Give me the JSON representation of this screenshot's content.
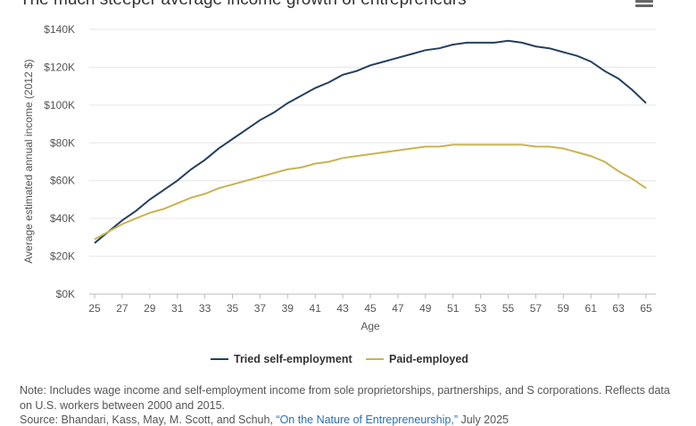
{
  "title": "The much steeper average income growth of entrepreneurs",
  "menu_icon": "hamburger-menu-icon",
  "note": "Note: Includes wage income and self-employment income from sole proprietorships, partnerships, and S corporations. Reflects data on U.S. workers between 2000 and 2015.",
  "source_prefix": "Source: Bhandari, Kass, May, M. Scott, and Schuh, ",
  "source_link": "“On the Nature of Entrepreneurship,”",
  "source_suffix": " July 2025",
  "chart_data": {
    "type": "line",
    "xlabel": "Age",
    "ylabel": "Average estimated annual income (2012 $)",
    "xlim": [
      25,
      65
    ],
    "ylim": [
      0,
      140000
    ],
    "x_ticks": [
      "25",
      "27",
      "29",
      "31",
      "33",
      "35",
      "37",
      "39",
      "41",
      "43",
      "45",
      "47",
      "49",
      "51",
      "53",
      "55",
      "57",
      "59",
      "61",
      "63",
      "65"
    ],
    "y_ticks": [
      "$0K",
      "$20K",
      "$40K",
      "$60K",
      "$80K",
      "$100K",
      "$120K",
      "$140K"
    ],
    "grid": "horizontal",
    "legend": "bottom",
    "x": [
      25,
      26,
      27,
      28,
      29,
      30,
      31,
      32,
      33,
      34,
      35,
      36,
      37,
      38,
      39,
      40,
      41,
      42,
      43,
      44,
      45,
      46,
      47,
      48,
      49,
      50,
      51,
      52,
      53,
      54,
      55,
      56,
      57,
      58,
      59,
      60,
      61,
      62,
      63,
      64,
      65
    ],
    "series": [
      {
        "name": "Tried self-employment",
        "color": "#243f5e",
        "values": [
          27000,
          33000,
          39000,
          44000,
          50000,
          55000,
          60000,
          66000,
          71000,
          77000,
          82000,
          87000,
          92000,
          96000,
          101000,
          105000,
          109000,
          112000,
          116000,
          118000,
          121000,
          123000,
          125000,
          127000,
          129000,
          130000,
          132000,
          133000,
          133000,
          133000,
          134000,
          133000,
          131000,
          130000,
          128000,
          126000,
          123000,
          118000,
          114000,
          108000,
          101000
        ]
      },
      {
        "name": "Paid-employed",
        "color": "#c9b350",
        "values": [
          29000,
          33000,
          37000,
          40000,
          43000,
          45000,
          48000,
          51000,
          53000,
          56000,
          58000,
          60000,
          62000,
          64000,
          66000,
          67000,
          69000,
          70000,
          72000,
          73000,
          74000,
          75000,
          76000,
          77000,
          78000,
          78000,
          79000,
          79000,
          79000,
          79000,
          79000,
          79000,
          78000,
          78000,
          77000,
          75000,
          73000,
          70000,
          65000,
          61000,
          56000
        ]
      }
    ]
  }
}
